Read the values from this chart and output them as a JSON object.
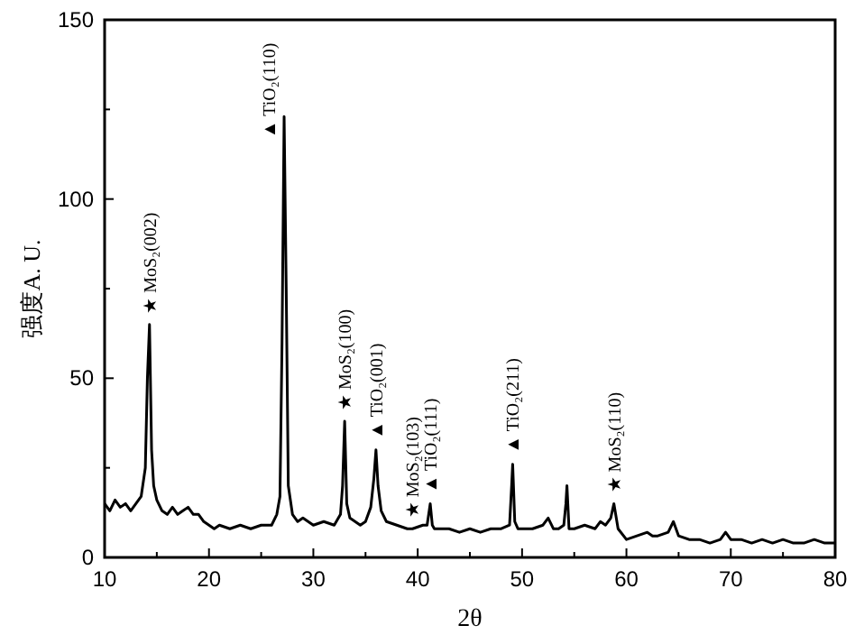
{
  "chart_data": {
    "type": "line",
    "xlabel": "2θ",
    "ylabel": "强度A. U.",
    "xlim": [
      10,
      80
    ],
    "ylim": [
      0,
      150
    ],
    "xticks": [
      10,
      {
        "value": 15,
        "label": null
      },
      20,
      {
        "value": 25,
        "label": null
      },
      30,
      {
        "value": 35,
        "label": null
      },
      40,
      {
        "value": 45,
        "label": null
      },
      50,
      {
        "value": 55,
        "label": null
      },
      60,
      {
        "value": 65,
        "label": null
      },
      70,
      {
        "value": 75,
        "label": null
      },
      80
    ],
    "yticks": [
      0,
      {
        "value": 25,
        "label": null
      },
      50,
      {
        "value": 75,
        "label": null
      },
      100,
      {
        "value": 125,
        "label": null
      },
      150
    ],
    "grid": false,
    "marker": "none",
    "line_style": "solid",
    "series": [
      {
        "color": "#000000",
        "x": [
          10,
          10.5,
          11,
          11.5,
          12,
          12.5,
          13,
          13.5,
          13.9,
          14.1,
          14.3,
          14.5,
          14.7,
          15,
          15.5,
          16,
          16.5,
          17,
          17.5,
          18,
          18.5,
          19,
          19.5,
          20,
          20.5,
          21,
          22,
          23,
          24,
          25,
          26,
          26.5,
          26.8,
          27,
          27.2,
          27.4,
          27.6,
          28,
          28.5,
          29,
          30,
          31,
          32,
          32.6,
          32.8,
          33,
          33.2,
          33.5,
          34,
          34.5,
          35,
          35.5,
          35.8,
          36,
          36.2,
          36.5,
          37,
          38,
          39,
          39.5,
          40.5,
          40.9,
          41.2,
          41.4,
          41.6,
          42,
          43,
          44,
          45,
          46,
          47,
          48,
          48.8,
          49,
          49.1,
          49.3,
          49.6,
          50,
          51,
          52,
          52.5,
          53,
          53.5,
          54,
          54.2,
          54.3,
          54.5,
          55,
          56,
          57,
          57.5,
          58,
          58.5,
          58.8,
          59.2,
          60,
          61,
          62,
          62.5,
          63,
          64,
          64.5,
          65,
          66,
          67,
          68,
          69,
          69.5,
          70,
          71,
          72,
          73,
          74,
          75,
          76,
          77,
          78,
          79,
          80
        ],
        "values": [
          15,
          13,
          16,
          14,
          15,
          13,
          15,
          17,
          25,
          50,
          65,
          30,
          20,
          16,
          13,
          12,
          14,
          12,
          13,
          14,
          12,
          12,
          10,
          9,
          8,
          9,
          8,
          9,
          8,
          9,
          9,
          12,
          17,
          60,
          123,
          75,
          20,
          12,
          10,
          11,
          9,
          10,
          9,
          12,
          20,
          38,
          15,
          11,
          10,
          9,
          10,
          14,
          22,
          30,
          20,
          13,
          10,
          9,
          8,
          8,
          9,
          9,
          15,
          9,
          8,
          8,
          8,
          7,
          8,
          7,
          8,
          8,
          9,
          20,
          26,
          10,
          8,
          8,
          8,
          9,
          11,
          8,
          8,
          9,
          15,
          20,
          8,
          8,
          9,
          8,
          10,
          9,
          11,
          15,
          8,
          5,
          6,
          7,
          6,
          6,
          7,
          10,
          6,
          5,
          5,
          4,
          5,
          7,
          5,
          5,
          4,
          5,
          4,
          5,
          4,
          4,
          5,
          4,
          4
        ]
      }
    ],
    "annotations": [
      {
        "text": "★ MoS₂(002)",
        "x": 14.3,
        "y": 65
      },
      {
        "text": "▲ TiO₂(110)",
        "x": 27.2,
        "y": 123
      },
      {
        "text": "★ MoS₂(100)",
        "x": 33,
        "y": 38
      },
      {
        "text": "▲ TiO₂(001)",
        "x": 36,
        "y": 30
      },
      {
        "text": "★ MoS₂(103)",
        "x": 39.5,
        "y": 8
      },
      {
        "text": "▲ TiO₂(111)",
        "x": 41.2,
        "y": 15
      },
      {
        "text": "▲ TiO₂(211)",
        "x": 49.1,
        "y": 26
      },
      {
        "text": "★ MoS₂(110)",
        "x": 58.8,
        "y": 15
      }
    ]
  }
}
